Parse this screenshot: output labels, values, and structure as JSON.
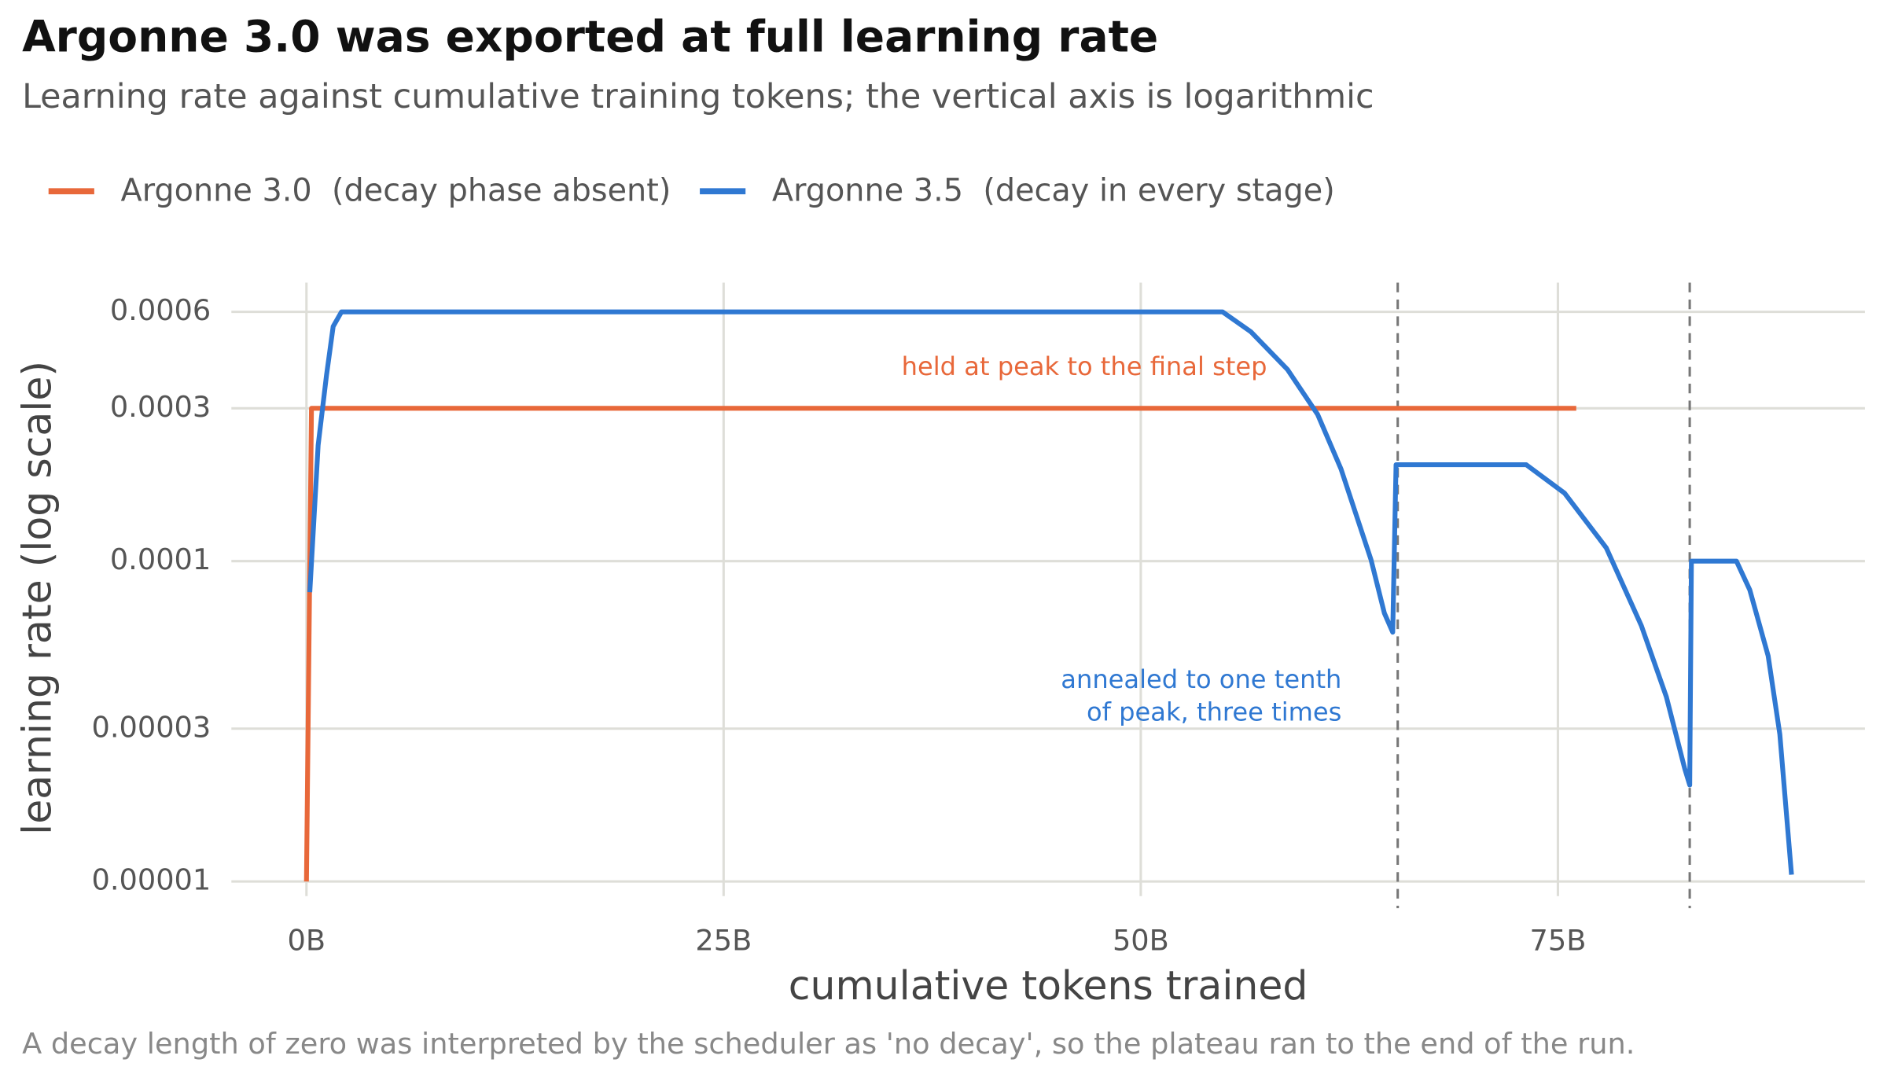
{
  "chart_data": {
    "type": "line",
    "title": "Argonne 3.0 was exported at full learning rate",
    "subtitle": "Learning rate against cumulative training tokens; the vertical axis is logarithmic",
    "x_label": "cumulative tokens trained",
    "y_label": "learning rate (log scale)",
    "caption": "A decay length of zero was interpreted by the scheduler as 'no decay', so the plateau ran to the end of the run.",
    "y_scale": "log",
    "grid": true,
    "legend": "top",
    "xlim": [
      -4.5,
      93.4
    ],
    "ylim": [
      9e-06,
      0.00074
    ],
    "xticks": [
      {
        "value": 0,
        "label": "0B"
      },
      {
        "value": 25,
        "label": "25B"
      },
      {
        "value": 50,
        "label": "50B"
      },
      {
        "value": 75,
        "label": "75B"
      }
    ],
    "yticks": [
      1e-05,
      3e-05,
      0.0001,
      0.0003,
      0.0006
    ],
    "vlines": [
      65.4,
      82.9
    ],
    "series": [
      {
        "name": "Argonne 3.0  (decay phase absent)",
        "color": "#e8683a",
        "x": [
          0,
          0.3,
          76.1
        ],
        "values": [
          1e-05,
          0.0003,
          0.0003
        ]
      },
      {
        "name": "Argonne 3.5  (decay in every stage)",
        "color": "#2f78d2",
        "x": [
          0.2,
          0.7,
          1.2,
          1.6,
          2.1,
          54.9,
          56.6,
          58.8,
          60.6,
          62.0,
          63.8,
          64.6,
          65.1,
          65.3,
          73.1,
          75.4,
          77.9,
          80.0,
          81.5,
          82.6,
          82.9,
          83.0,
          85.7,
          86.5,
          87.6,
          88.3,
          89.0
        ],
        "values": [
          8e-05,
          0.00023,
          0.00038,
          0.00054,
          0.0006,
          0.0006,
          0.00052,
          0.000396,
          0.000287,
          0.000194,
          0.000101,
          6.88e-05,
          6e-05,
          0.0002,
          0.0002,
          0.000163,
          0.00011,
          6.29e-05,
          3.77e-05,
          2.25e-05,
          2e-05,
          0.0001,
          0.0001,
          8.13e-05,
          5.06e-05,
          2.88e-05,
          1.05e-05
        ]
      }
    ],
    "annotations": [
      {
        "text": "held at peak to the final step",
        "series": 0
      },
      {
        "text": "annealed to one tenth",
        "series": 1
      },
      {
        "text": "of peak, three times",
        "series": 1
      }
    ]
  }
}
